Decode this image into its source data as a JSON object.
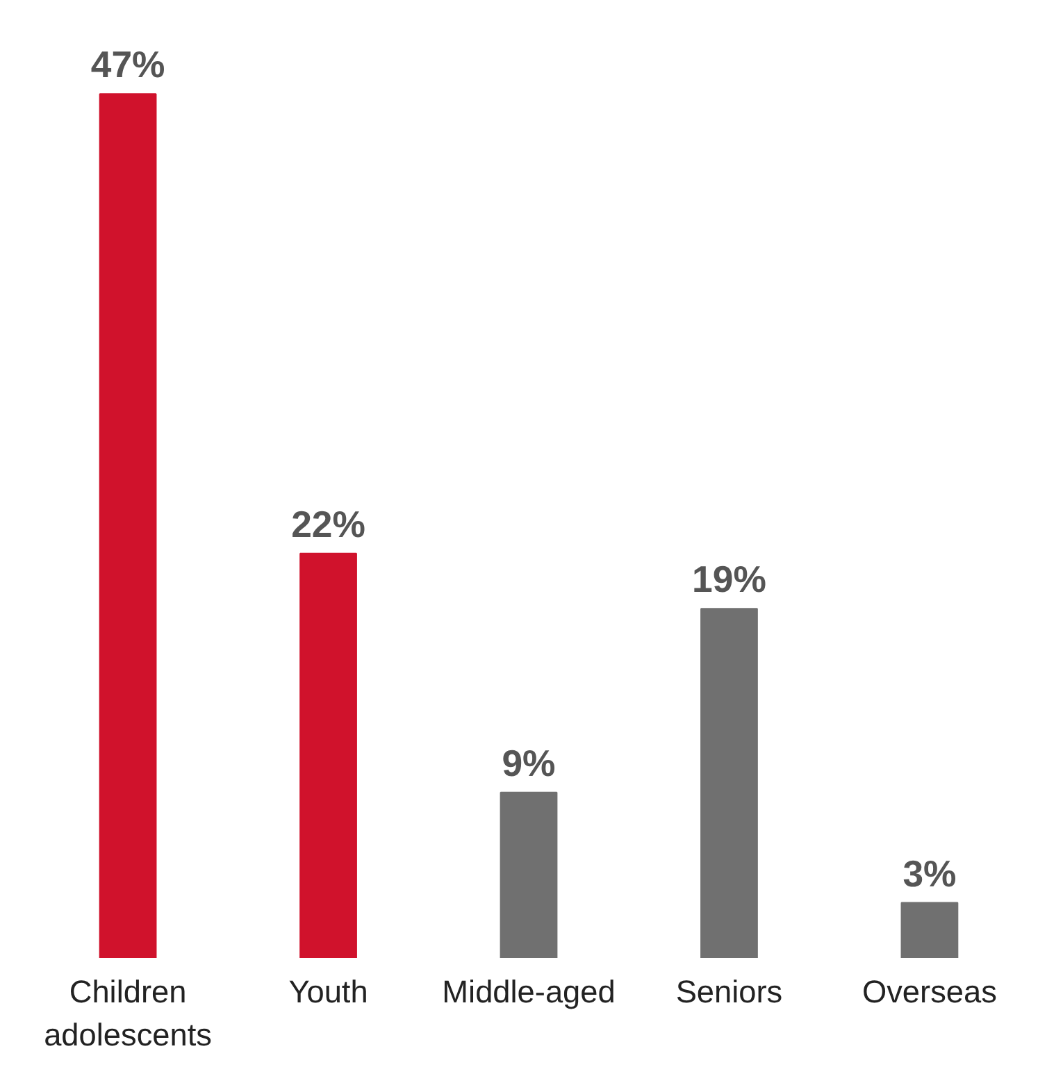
{
  "chart_data": {
    "type": "bar",
    "categories": [
      "Children\nadolescents",
      "Youth",
      "Middle-aged",
      "Seniors",
      "Overseas"
    ],
    "values": [
      47,
      22,
      9,
      19,
      3
    ],
    "value_labels": [
      "47%",
      "22%",
      "9%",
      "19%",
      "3%"
    ],
    "colors": [
      "#d0122c",
      "#d0122c",
      "#707070",
      "#707070",
      "#707070"
    ]
  }
}
